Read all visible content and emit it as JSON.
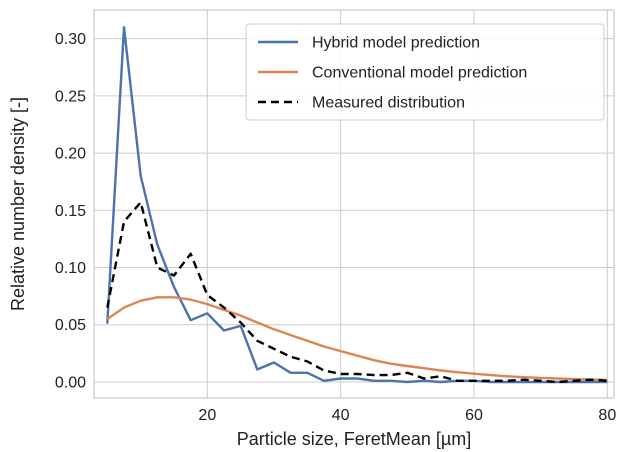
{
  "chart_data": {
    "type": "line",
    "title": "",
    "xlabel": "Particle size, FeretMean [µm]",
    "ylabel": "Relative number density [-]",
    "xlim": [
      3,
      81
    ],
    "ylim": [
      -0.014,
      0.325
    ],
    "xticks": [
      20,
      40,
      60,
      80
    ],
    "yticks": [
      0.0,
      0.05,
      0.1,
      0.15,
      0.2,
      0.25,
      0.3
    ],
    "grid": true,
    "legend_position": "top-right",
    "series": [
      {
        "name": "Hybrid model prediction",
        "color": "#4c72b0",
        "style": "solid",
        "x": [
          5,
          7.5,
          10,
          12.5,
          15,
          17.5,
          20,
          22.5,
          25,
          27.5,
          30,
          32.5,
          35,
          37.5,
          40,
          42.5,
          45,
          47.5,
          50,
          52.5,
          55,
          57.5,
          60,
          62.5,
          65,
          67.5,
          70,
          72.5,
          75,
          77.5,
          80
        ],
        "y": [
          0.051,
          0.31,
          0.18,
          0.12,
          0.083,
          0.054,
          0.06,
          0.045,
          0.049,
          0.011,
          0.017,
          0.008,
          0.008,
          0.001,
          0.003,
          0.003,
          0.001,
          0.001,
          0.0,
          0.001,
          0.0,
          0.001,
          0.001,
          0.0,
          0.0,
          0.0,
          0.0,
          0.0,
          0.0,
          0.0,
          0.0
        ]
      },
      {
        "name": "Conventional model prediction",
        "color": "#dd8452",
        "style": "solid",
        "x": [
          5,
          7.5,
          10,
          12.5,
          15,
          17.5,
          20,
          22.5,
          25,
          27.5,
          30,
          32.5,
          35,
          37.5,
          40,
          42.5,
          45,
          47.5,
          50,
          52.5,
          55,
          57.5,
          60,
          62.5,
          65,
          67.5,
          70,
          72.5,
          75,
          77.5,
          80
        ],
        "y": [
          0.055,
          0.065,
          0.071,
          0.074,
          0.074,
          0.072,
          0.068,
          0.063,
          0.058,
          0.052,
          0.046,
          0.041,
          0.036,
          0.031,
          0.027,
          0.023,
          0.019,
          0.016,
          0.014,
          0.012,
          0.01,
          0.0085,
          0.0072,
          0.006,
          0.005,
          0.0042,
          0.0036,
          0.003,
          0.0025,
          0.0021,
          0.0018
        ]
      },
      {
        "name": "Measured distribution",
        "color": "#000000",
        "style": "dashed",
        "x": [
          5,
          7.5,
          10,
          12.5,
          15,
          17.5,
          20,
          22.5,
          25,
          27.5,
          30,
          32.5,
          35,
          37.5,
          40,
          42.5,
          45,
          47.5,
          50,
          52.5,
          55,
          57.5,
          60,
          62.5,
          65,
          67.5,
          70,
          72.5,
          75,
          77.5,
          80
        ],
        "y": [
          0.065,
          0.14,
          0.157,
          0.1,
          0.093,
          0.112,
          0.076,
          0.065,
          0.052,
          0.036,
          0.029,
          0.022,
          0.018,
          0.01,
          0.007,
          0.007,
          0.006,
          0.006,
          0.008,
          0.003,
          0.005,
          0.001,
          0.001,
          0.001,
          0.001,
          0.002,
          0.001,
          0.0,
          0.001,
          0.002,
          0.001
        ]
      }
    ]
  }
}
